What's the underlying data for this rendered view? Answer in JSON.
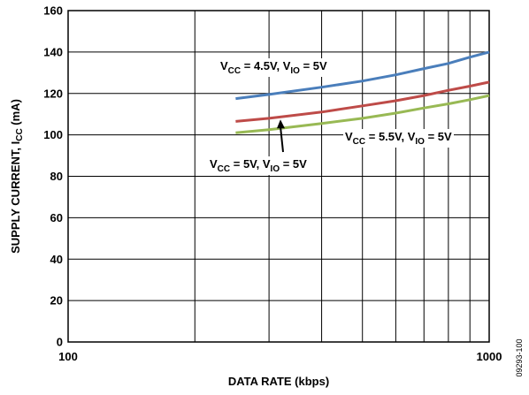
{
  "chart_data": {
    "type": "line",
    "x_scale": "log",
    "xlim": [
      100,
      1000
    ],
    "ylim": [
      0,
      160
    ],
    "yticks": [
      0,
      20,
      40,
      60,
      80,
      100,
      120,
      140,
      160
    ],
    "xtick_labels": [
      "100",
      "1000"
    ],
    "xlabel": "DATA RATE (kbps)",
    "ylabel": {
      "prefix": "SUPPLY CURRENT, I",
      "sub": "CC",
      "suffix": " (mA)"
    },
    "grid": true,
    "series": [
      {
        "name": "VCC = 4.5V, VIO = 5V",
        "color": "#4a7ebb",
        "x": [
          250,
          300,
          400,
          500,
          600,
          700,
          800,
          900,
          1000
        ],
        "y": [
          117.5,
          119.5,
          123,
          126,
          129,
          132,
          134.5,
          137.5,
          140
        ]
      },
      {
        "name": "VCC = 5V, VIO = 5V",
        "color": "#be4b48",
        "x": [
          250,
          300,
          400,
          500,
          600,
          700,
          800,
          900,
          1000
        ],
        "y": [
          106.5,
          108,
          111,
          114,
          116.5,
          119,
          121.5,
          123.5,
          125.5
        ]
      },
      {
        "name": "VCC = 5.5V, VIO = 5V",
        "color": "#98b954",
        "x": [
          250,
          300,
          400,
          500,
          600,
          700,
          800,
          900,
          1000
        ],
        "y": [
          101,
          102.5,
          105.5,
          108,
          110.5,
          113,
          115,
          117,
          119
        ]
      }
    ],
    "annotations": [
      {
        "series": 0,
        "parts": [
          [
            "V",
            ""
          ],
          [
            "CC",
            "sub"
          ],
          [
            " = 4.5V, V",
            ""
          ],
          [
            "IO",
            "sub"
          ],
          [
            " = 5V",
            ""
          ]
        ]
      },
      {
        "series": 1,
        "parts": [
          [
            "V",
            ""
          ],
          [
            "CC",
            "sub"
          ],
          [
            " = 5V, V",
            ""
          ],
          [
            "IO",
            "sub"
          ],
          [
            " = 5V",
            ""
          ]
        ]
      },
      {
        "series": 2,
        "parts": [
          [
            "V",
            ""
          ],
          [
            "CC",
            "sub"
          ],
          [
            " = 5.5V, V",
            ""
          ],
          [
            "IO",
            "sub"
          ],
          [
            " = 5V",
            ""
          ]
        ]
      }
    ],
    "figure_id": "09293-100"
  }
}
